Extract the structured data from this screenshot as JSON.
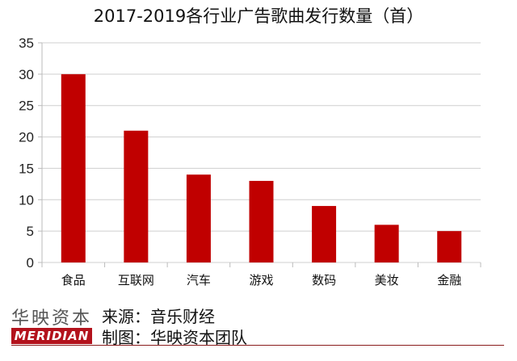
{
  "chart_data": {
    "type": "bar",
    "title": "2017-2019各行业广告歌曲发行数量（首）",
    "categories": [
      "食品",
      "互联网",
      "汽车",
      "游戏",
      "数码",
      "美妆",
      "金融"
    ],
    "values": [
      30,
      21,
      14,
      13,
      9,
      6,
      5
    ],
    "ylim": [
      0,
      35
    ],
    "yticks": [
      0,
      5,
      10,
      15,
      20,
      25,
      30,
      35
    ],
    "xlabel": "",
    "ylabel": "",
    "grid": true,
    "bar_color": "#c00000"
  },
  "footer": {
    "brand_cn": "华映资本",
    "brand_en": "MERIDIAN",
    "source": "来源：音乐财经",
    "maker": "制图：华映资本团队",
    "accent": "#b3121c"
  }
}
